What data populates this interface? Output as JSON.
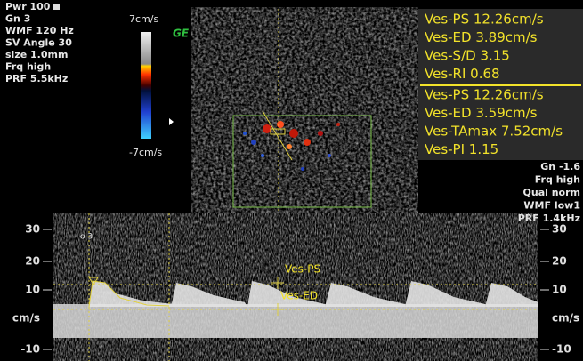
{
  "left_settings": [
    "Pwr 100",
    "Gn 3",
    "WMF 120 Hz",
    "SV Angle 30",
    "size 1.0mm",
    "Frq high",
    "PRF 5.5kHz"
  ],
  "color_scale": {
    "top": "7cm/s",
    "bottom": "-7cm/s"
  },
  "logo": "GE",
  "measurements": {
    "group_1": [
      "Ves-PS 12.26cm/s",
      "Ves-ED 3.89cm/s",
      "Ves-S/D 3.15",
      "Ves-RI 0.68"
    ],
    "group_2": [
      "Ves-PS 12.26cm/s",
      "Ves-ED 3.59cm/s",
      "Ves-TAmax 7.52cm/s",
      "Ves-PI 1.15"
    ]
  },
  "right_settings": [
    "Gn -1.6",
    "Frq high",
    "Qual norm",
    "WMF low1",
    "PRF 1.4kHz"
  ],
  "spectrum": {
    "left_axis": [
      "30",
      "20",
      "10",
      "cm/s",
      "-10"
    ],
    "right_axis": [
      "30",
      "20",
      "10",
      "cm/s",
      "-10"
    ],
    "cursor_labels": [
      "Ves-PS",
      "Ves-ED"
    ],
    "trace_label": "o 3"
  }
}
